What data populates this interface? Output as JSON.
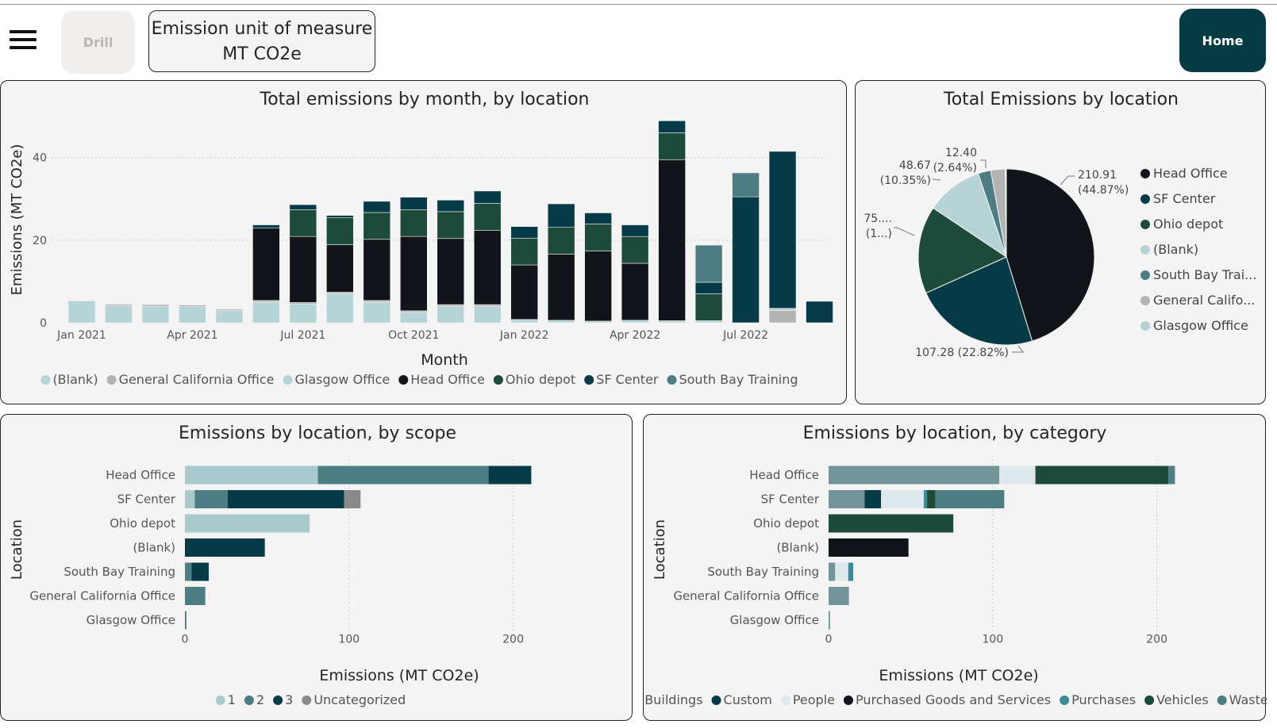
{
  "toolbar": {
    "drill_label": "Drill",
    "unit_line1": "Emission unit of measure",
    "unit_line2": "MT CO2e",
    "home_label": "Home"
  },
  "colors": {
    "blank": "#b6d3d5",
    "general": "#b3b3b3",
    "glasgow": "#b6d3d5",
    "head": "#111519",
    "ohio": "#1e4a3c",
    "sf": "#063a47",
    "southbay": "#4d7c83"
  },
  "monthly": {
    "title": "Total emissions by month, by location",
    "ylabel": "Emissions (MT CO2e)",
    "xlabel": "Month",
    "y_ticks": [
      "0",
      "20",
      "40"
    ],
    "x_ticks": [
      "Jan 2021",
      "Apr 2021",
      "Jul 2021",
      "Oct 2021",
      "Jan 2022",
      "Apr 2022",
      "Jul 2022"
    ],
    "legend": [
      "(Blank)",
      "General California Office",
      "Glasgow Office",
      "Head Office",
      "Ohio depot",
      "SF Center",
      "South Bay Training"
    ]
  },
  "pie": {
    "title": "Total Emissions by location",
    "labels": {
      "head": "210.91",
      "head_pct": "(44.87%)",
      "sf": "107.28 (22.82%)",
      "ohio1": "75....",
      "ohio2": "(1...)",
      "blank1": "48.67",
      "blank2": "(10.35%)",
      "general1": "12.40",
      "general2": "(2.64%)"
    },
    "legend": [
      "Head Office",
      "SF Center",
      "Ohio depot",
      "(Blank)",
      "South Bay Trai...",
      "General Califo...",
      "Glasgow Office"
    ]
  },
  "scope": {
    "title": "Emissions by location, by scope",
    "ylabel": "Location",
    "xlabel": "Emissions (MT CO2e)",
    "x_ticks": [
      "0",
      "100",
      "200"
    ],
    "legend": [
      "1",
      "2",
      "3",
      "Uncategorized"
    ]
  },
  "category": {
    "title": "Emissions by location, by category",
    "ylabel": "Location",
    "xlabel": "Emissions (MT CO2e)",
    "x_ticks": [
      "0",
      "100",
      "200"
    ],
    "legend": [
      "Buildings",
      "Custom",
      "People",
      "Purchased Goods and Services",
      "Purchases",
      "Vehicles",
      "Waste"
    ]
  },
  "chart_data": [
    {
      "type": "bar",
      "stacked": true,
      "title": "Total emissions by month, by location",
      "xlabel": "Month",
      "ylabel": "Emissions (MT CO2e)",
      "ylim": [
        0,
        48
      ],
      "categories": [
        "Jan 2021",
        "Feb 2021",
        "Mar 2021",
        "Apr 2021",
        "May 2021",
        "Jun 2021",
        "Jul 2021",
        "Aug 2021",
        "Sep 2021",
        "Oct 2021",
        "Nov 2021",
        "Dec 2021",
        "Jan 2022",
        "Feb 2022",
        "Mar 2022",
        "Apr 2022",
        "May 2022",
        "Jun 2022",
        "Jul 2022",
        "Aug 2022",
        "Sep 2022"
      ],
      "series": [
        {
          "name": "(Blank)",
          "color": "#b6d3d5",
          "values": [
            5.3,
            4.2,
            4.0,
            3.9,
            3.0,
            5.0,
            4.5,
            7.0,
            5.0,
            2.5,
            4.0,
            4.0,
            0.8,
            0.6,
            0.4,
            0.6,
            0.5,
            0.5,
            0,
            0,
            0
          ]
        },
        {
          "name": "General California Office",
          "color": "#b3b3b3",
          "values": [
            0,
            0.3,
            0.4,
            0.4,
            0.3,
            0.4,
            0.4,
            0.4,
            0.4,
            0.4,
            0.4,
            0.4,
            0,
            0,
            0,
            0,
            0,
            0,
            0,
            3.0,
            0
          ]
        },
        {
          "name": "Glasgow Office",
          "color": "#b6d3d5",
          "values": [
            0,
            0,
            0,
            0,
            0,
            0,
            0,
            0,
            0,
            0,
            0,
            0,
            0,
            0,
            0,
            0,
            0,
            0,
            0,
            0.5,
            0
          ]
        },
        {
          "name": "Head Office",
          "color": "#111519",
          "values": [
            0,
            0,
            0,
            0,
            0,
            17.5,
            16.0,
            11.5,
            14.8,
            18.0,
            16.0,
            18.0,
            13.2,
            16.0,
            17.0,
            13.8,
            39.0,
            0,
            0,
            0,
            0
          ]
        },
        {
          "name": "Ohio depot",
          "color": "#1e4a3c",
          "values": [
            0,
            0,
            0,
            0,
            0,
            0,
            6.5,
            6.5,
            6.5,
            6.5,
            6.5,
            6.5,
            6.5,
            6.5,
            6.5,
            6.5,
            6.5,
            6.5,
            0,
            0,
            0
          ]
        },
        {
          "name": "SF Center",
          "color": "#063a47",
          "values": [
            0,
            0,
            0,
            0,
            0,
            0.8,
            1.2,
            0.6,
            2.7,
            3.0,
            2.8,
            3.0,
            2.8,
            5.7,
            2.7,
            2.8,
            2.9,
            2.8,
            30.5,
            38.0,
            5.2
          ]
        },
        {
          "name": "South Bay Training",
          "color": "#4d7c83",
          "values": [
            0,
            0,
            0,
            0,
            0,
            0,
            0,
            0,
            0,
            0,
            0,
            0,
            0,
            0,
            0,
            0,
            0,
            9.0,
            5.8,
            0,
            0
          ]
        }
      ]
    },
    {
      "type": "pie",
      "title": "Total Emissions by location",
      "categories": [
        "Head Office",
        "SF Center",
        "Ohio depot",
        "(Blank)",
        "South Bay Training",
        "General California Office",
        "Glasgow Office"
      ],
      "values": [
        210.91,
        107.28,
        75.0,
        48.67,
        10.8,
        12.4,
        0.9
      ],
      "colors": [
        "#111519",
        "#063a47",
        "#1e4a3c",
        "#b6d3d5",
        "#4d7c83",
        "#b3b3b3",
        "#b6d3d5"
      ]
    },
    {
      "type": "bar",
      "orientation": "horizontal",
      "stacked": true,
      "title": "Emissions by location, by scope",
      "xlabel": "Emissions (MT CO2e)",
      "ylabel": "Location",
      "xlim": [
        0,
        220
      ],
      "categories": [
        "Head Office",
        "SF Center",
        "Ohio depot",
        "(Blank)",
        "South Bay Training",
        "General California Office",
        "Glasgow Office"
      ],
      "series": [
        {
          "name": "1",
          "color": "#a9c9cc",
          "values": [
            81,
            6,
            76,
            0,
            0,
            0,
            0
          ]
        },
        {
          "name": "2",
          "color": "#4d7c83",
          "values": [
            104,
            20,
            0,
            0,
            4,
            12.4,
            0.9
          ]
        },
        {
          "name": "3",
          "color": "#063a47",
          "values": [
            26,
            71,
            0,
            48.67,
            10.5,
            0,
            0
          ]
        },
        {
          "name": "Uncategorized",
          "color": "#8a8a8a",
          "values": [
            0,
            10,
            0,
            0,
            0,
            0,
            0
          ]
        }
      ]
    },
    {
      "type": "bar",
      "orientation": "horizontal",
      "stacked": true,
      "title": "Emissions by location, by category",
      "xlabel": "Emissions (MT CO2e)",
      "ylabel": "Location",
      "xlim": [
        0,
        220
      ],
      "categories": [
        "Head Office",
        "SF Center",
        "Ohio depot",
        "(Blank)",
        "South Bay Training",
        "General California Office",
        "Glasgow Office"
      ],
      "series": [
        {
          "name": "Buildings",
          "color": "#739498",
          "values": [
            104,
            22,
            0,
            0,
            4,
            12.4,
            0.9
          ]
        },
        {
          "name": "Custom",
          "color": "#063a47",
          "values": [
            0,
            10,
            0,
            0,
            0,
            0,
            0
          ]
        },
        {
          "name": "People",
          "color": "#dde9ea",
          "values": [
            22,
            26,
            0,
            0,
            8,
            0,
            0
          ]
        },
        {
          "name": "Purchased Goods and Services",
          "color": "#111519",
          "values": [
            0,
            0,
            0,
            48.67,
            0,
            0,
            0
          ]
        },
        {
          "name": "Purchases",
          "color": "#3d8a96",
          "values": [
            0,
            2,
            0,
            0,
            3,
            0,
            0
          ]
        },
        {
          "name": "Vehicles",
          "color": "#1e4a3c",
          "values": [
            81,
            5,
            76,
            0,
            0,
            0,
            0
          ]
        },
        {
          "name": "Waste",
          "color": "#4d7c83",
          "values": [
            4,
            42,
            0,
            0,
            0,
            0,
            0
          ]
        }
      ]
    }
  ]
}
